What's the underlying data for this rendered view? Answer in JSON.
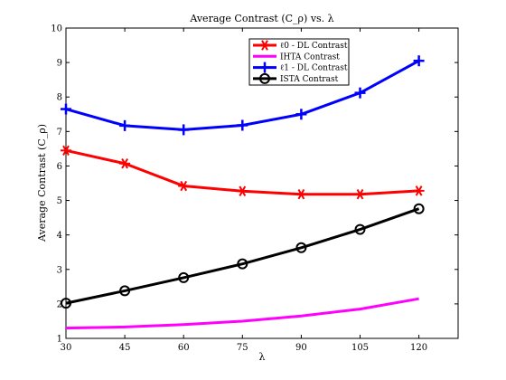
{
  "chart_data": {
    "type": "line",
    "title": "Average Contrast (C_ρ) vs. λ",
    "xlabel": "λ",
    "ylabel": "Average Contrast (C_ρ)",
    "x": [
      30,
      45,
      60,
      75,
      90,
      105,
      120
    ],
    "xlim": [
      30,
      130
    ],
    "ylim": [
      1,
      10
    ],
    "xticks": [
      30,
      45,
      60,
      75,
      90,
      105,
      120
    ],
    "yticks": [
      1,
      2,
      3,
      4,
      5,
      6,
      7,
      8,
      9,
      10
    ],
    "grid": false,
    "legend_position": "top-right",
    "series": [
      {
        "name": "ℓ0 - DL Contrast",
        "color": "#ff0000",
        "marker": "asterisk",
        "values": [
          6.45,
          6.07,
          5.42,
          5.27,
          5.18,
          5.18,
          5.28
        ]
      },
      {
        "name": "IHTA Contrast",
        "color": "#ff00ff",
        "marker": "none",
        "values": [
          1.3,
          1.33,
          1.4,
          1.5,
          1.65,
          1.85,
          2.15
        ]
      },
      {
        "name": "ℓ1 - DL Contrast",
        "color": "#0000ff",
        "marker": "plus",
        "values": [
          7.65,
          7.17,
          7.05,
          7.18,
          7.5,
          8.12,
          9.05
        ]
      },
      {
        "name": "ISTA Contrast",
        "color": "#000000",
        "marker": "circle",
        "values": [
          2.02,
          2.38,
          2.76,
          3.16,
          3.63,
          4.16,
          4.76
        ]
      }
    ]
  }
}
